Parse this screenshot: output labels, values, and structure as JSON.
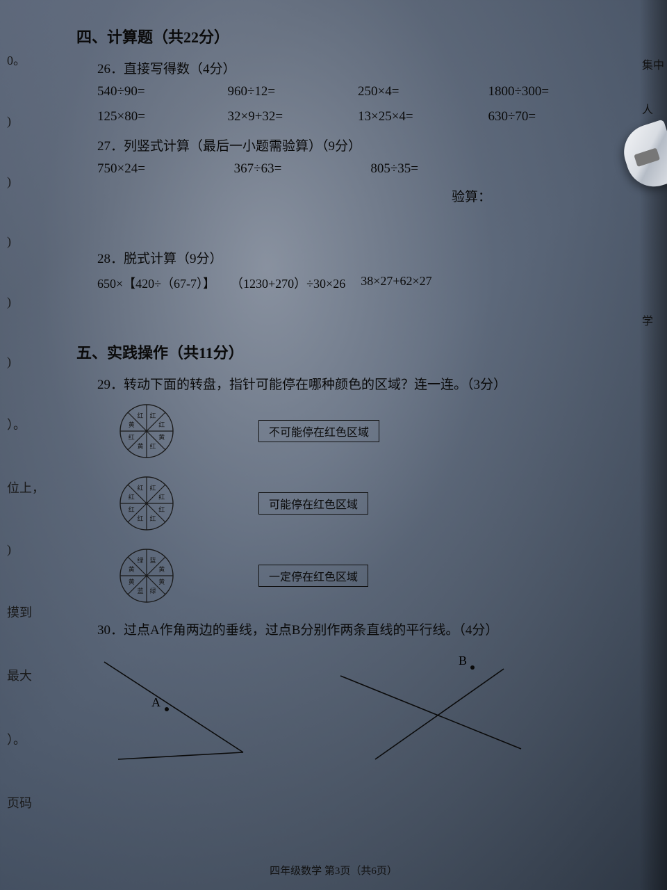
{
  "leftEdge": {
    "items": [
      "0。",
      ")",
      ")",
      ")",
      ")",
      ")",
      "）。",
      "位上，",
      ")",
      "摸到",
      "最大",
      "）。",
      "页码"
    ]
  },
  "rightEdge": {
    "items": [
      "集中",
      "人",
      "学"
    ]
  },
  "section4": {
    "title": "四、计算题（共22分）",
    "q26": {
      "label": "26．直接写得数（4分）",
      "row1": [
        "540÷90=",
        "960÷12=",
        "250×4=",
        "1800÷300="
      ],
      "row2": [
        "125×80=",
        "32×9+32=",
        "13×25×4=",
        "630÷70="
      ]
    },
    "q27": {
      "label": "27．列竖式计算（最后一小题需验算）（9分）",
      "row": [
        "750×24=",
        "367÷63=",
        "805÷35="
      ],
      "check": "验算："
    },
    "q28": {
      "label": "28．脱式计算（9分）",
      "items": [
        "650×【420÷（67-7）】",
        "（1230+270）÷30×26",
        "38×27+62×27"
      ]
    }
  },
  "section5": {
    "title": "五、实践操作（共11分）",
    "q29": {
      "label": "29．转动下面的转盘，指针可能停在哪种颜色的区域？连一连。（3分）",
      "sector_stroke": "#1a1a1a",
      "sector_font": 9,
      "wheels": [
        {
          "sectors": [
            "红",
            "红",
            "黄",
            "红",
            "黄",
            "红",
            "黄",
            "红"
          ]
        },
        {
          "sectors": [
            "红",
            "红",
            "红",
            "红",
            "红",
            "红",
            "红",
            "红"
          ]
        },
        {
          "sectors": [
            "蓝",
            "黄",
            "黄",
            "绿",
            "蓝",
            "黄",
            "黄",
            "绿"
          ]
        }
      ],
      "boxes": [
        "不可能停在红色区域",
        "可能停在红色区域",
        "一定停在红色区域"
      ]
    },
    "q30": {
      "label": "30．过点A作角两边的垂线，过点B分别作两条直线的平行线。（4分）",
      "pointA": "A",
      "pointB": "B",
      "line_color": "#0a0a0a",
      "line_width": 1.6
    }
  },
  "footer": "四年级数学  第3页（共6页）"
}
